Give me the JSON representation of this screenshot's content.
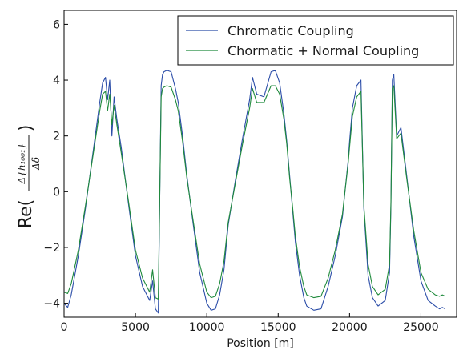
{
  "chart_data": {
    "type": "line",
    "xlabel": "Position [m]",
    "ylabel": {
      "prefix": "Re(",
      "numerator": "Δ{h₁₀₀₁}",
      "denominator": "Δδ",
      "suffix": ")"
    },
    "xlim": [
      0,
      27500
    ],
    "ylim": [
      -4.5,
      6.5
    ],
    "xticks": [
      0,
      5000,
      10000,
      15000,
      20000,
      25000
    ],
    "yticks": [
      -4,
      -2,
      0,
      2,
      4,
      6
    ],
    "xtick_labels": [
      "0",
      "5000",
      "10000",
      "15000",
      "20000",
      "25000"
    ],
    "ytick_labels": [
      "−4",
      "−2",
      "0",
      "2",
      "4",
      "6"
    ],
    "legend_position": "top-right",
    "series": [
      {
        "name": "Chromatic Coupling",
        "color": "#2b4da8",
        "x": [
          0,
          250,
          500,
          1000,
          1500,
          2000,
          2500,
          2700,
          2900,
          3050,
          3200,
          3350,
          3500,
          3700,
          4000,
          4500,
          5000,
          5500,
          6000,
          6200,
          6400,
          6600,
          6800,
          6900,
          7000,
          7200,
          7500,
          7800,
          8000,
          8300,
          8600,
          9000,
          9500,
          10000,
          10300,
          10600,
          10900,
          11200,
          11500,
          12000,
          12500,
          13000,
          13200,
          13500,
          14000,
          14500,
          14800,
          15100,
          15400,
          15600,
          15800,
          16000,
          16200,
          16500,
          16800,
          17000,
          17500,
          18000,
          18500,
          19000,
          19500,
          19700,
          19900,
          20000,
          20200,
          20500,
          20800,
          21000,
          21300,
          21600,
          22000,
          22500,
          22800,
          22900,
          23000,
          23100,
          23300,
          23600,
          24000,
          24500,
          25000,
          25500,
          26000,
          26300,
          26500,
          26700
        ],
        "y": [
          -4.0,
          -4.15,
          -3.7,
          -2.3,
          -0.6,
          1.3,
          3.2,
          3.9,
          4.1,
          3.3,
          4.0,
          2.0,
          3.4,
          2.6,
          1.6,
          -0.4,
          -2.3,
          -3.4,
          -3.9,
          -3.2,
          -4.2,
          -4.35,
          3.8,
          4.2,
          4.3,
          4.35,
          4.3,
          3.7,
          3.2,
          2.0,
          0.6,
          -1.0,
          -2.9,
          -4.0,
          -4.25,
          -4.2,
          -3.7,
          -2.8,
          -1.2,
          0.4,
          1.9,
          3.3,
          4.1,
          3.5,
          3.4,
          4.3,
          4.35,
          3.9,
          2.8,
          1.8,
          0.6,
          -0.6,
          -1.8,
          -3.0,
          -3.8,
          -4.1,
          -4.25,
          -4.2,
          -3.4,
          -2.3,
          -0.9,
          0.1,
          1.1,
          1.8,
          3.0,
          3.8,
          4.0,
          -0.6,
          -3.0,
          -3.8,
          -4.1,
          -3.9,
          -2.9,
          -0.5,
          4.0,
          4.2,
          2.0,
          2.3,
          0.6,
          -1.6,
          -3.2,
          -3.9,
          -4.1,
          -4.2,
          -4.15,
          -4.2
        ]
      },
      {
        "name": "Chormatic + Normal Coupling",
        "color": "#1f8a3c",
        "x": [
          0,
          250,
          500,
          1000,
          1500,
          2000,
          2500,
          2700,
          2900,
          3050,
          3200,
          3350,
          3500,
          3700,
          4000,
          4500,
          5000,
          5500,
          6000,
          6200,
          6400,
          6600,
          6800,
          6900,
          7000,
          7200,
          7500,
          7800,
          8000,
          8300,
          8600,
          9000,
          9500,
          10000,
          10300,
          10600,
          10900,
          11200,
          11500,
          12000,
          12500,
          13000,
          13200,
          13500,
          14000,
          14500,
          14800,
          15100,
          15400,
          15600,
          15800,
          16000,
          16200,
          16500,
          16800,
          17000,
          17500,
          18000,
          18500,
          19000,
          19500,
          19700,
          19900,
          20000,
          20200,
          20500,
          20800,
          21000,
          21300,
          21600,
          22000,
          22500,
          22800,
          22900,
          23000,
          23100,
          23300,
          23600,
          24000,
          24500,
          25000,
          25500,
          26000,
          26300,
          26500,
          26700
        ],
        "y": [
          -3.6,
          -3.65,
          -3.3,
          -2.1,
          -0.5,
          1.2,
          2.9,
          3.5,
          3.6,
          2.9,
          3.5,
          2.4,
          3.1,
          2.4,
          1.4,
          -0.3,
          -2.1,
          -3.1,
          -3.6,
          -2.8,
          -3.8,
          -3.85,
          3.4,
          3.7,
          3.75,
          3.8,
          3.75,
          3.3,
          2.9,
          1.8,
          0.5,
          -0.9,
          -2.6,
          -3.6,
          -3.8,
          -3.75,
          -3.3,
          -2.5,
          -1.1,
          0.3,
          1.7,
          3.0,
          3.7,
          3.2,
          3.2,
          3.8,
          3.8,
          3.5,
          2.6,
          1.7,
          0.5,
          -0.5,
          -1.6,
          -2.7,
          -3.4,
          -3.7,
          -3.8,
          -3.75,
          -3.1,
          -2.1,
          -0.8,
          0.1,
          1.0,
          1.6,
          2.7,
          3.4,
          3.6,
          -0.5,
          -2.6,
          -3.4,
          -3.7,
          -3.5,
          -2.6,
          -0.4,
          3.7,
          3.8,
          1.9,
          2.1,
          0.5,
          -1.4,
          -2.9,
          -3.5,
          -3.7,
          -3.75,
          -3.7,
          -3.75
        ]
      }
    ]
  }
}
